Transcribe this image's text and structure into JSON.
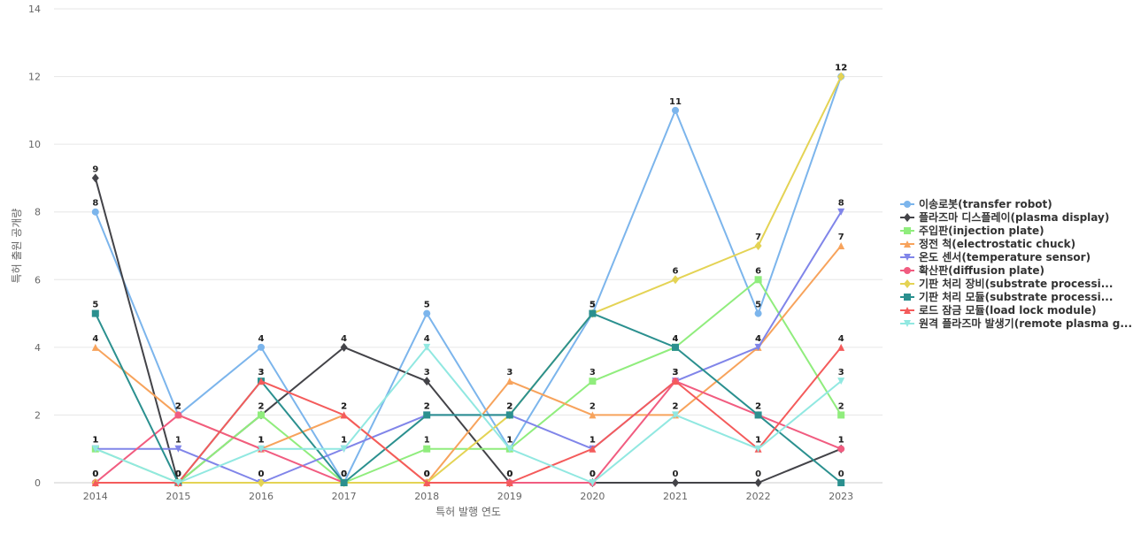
{
  "chart_data": {
    "type": "line",
    "xlabel": "특허 발행 연도",
    "ylabel": "특허 출원 공개량",
    "ylim": [
      0,
      14
    ],
    "y_ticks": [
      0,
      2,
      4,
      6,
      8,
      10,
      12,
      14
    ],
    "grid": true,
    "legend_position": "right",
    "categories": [
      "2014",
      "2015",
      "2016",
      "2017",
      "2018",
      "2019",
      "2020",
      "2021",
      "2022",
      "2023"
    ],
    "series": [
      {
        "name": "이송로봇(transfer robot)",
        "color": "#7cb5ec",
        "marker": "circle",
        "values": [
          8,
          2,
          4,
          0,
          5,
          1,
          5,
          11,
          5,
          12
        ]
      },
      {
        "name": "플라즈마 디스플레이(plasma display)",
        "color": "#434348",
        "marker": "diamond",
        "values": [
          9,
          0,
          2,
          4,
          3,
          0,
          0,
          0,
          0,
          1
        ]
      },
      {
        "name": "주입판(injection plate)",
        "color": "#90ed7d",
        "marker": "square",
        "values": [
          1,
          0,
          2,
          0,
          1,
          1,
          3,
          4,
          6,
          2
        ]
      },
      {
        "name": "정전 척(electrostatic chuck)",
        "color": "#f7a35c",
        "marker": "triangle",
        "values": [
          4,
          2,
          1,
          2,
          0,
          3,
          2,
          2,
          4,
          7
        ]
      },
      {
        "name": "온도 센서(temperature sensor)",
        "color": "#8085e9",
        "marker": "triangle-down",
        "values": [
          1,
          1,
          0,
          1,
          2,
          2,
          1,
          3,
          4,
          8
        ]
      },
      {
        "name": "확산판(diffusion plate)",
        "color": "#f15c80",
        "marker": "circle",
        "values": [
          0,
          2,
          1,
          0,
          0,
          0,
          0,
          3,
          2,
          1
        ]
      },
      {
        "name": "기판 처리 장비(substrate processi...",
        "color": "#e4d354",
        "marker": "diamond",
        "values": [
          0,
          0,
          0,
          0,
          0,
          2,
          5,
          6,
          7,
          12
        ]
      },
      {
        "name": "기판 처리 모듈(substrate processi...",
        "color": "#2b908f",
        "marker": "square",
        "values": [
          5,
          0,
          3,
          0,
          2,
          2,
          5,
          4,
          2,
          0
        ]
      },
      {
        "name": "로드 잠금 모듈(load lock module)",
        "color": "#f45b5b",
        "marker": "triangle",
        "values": [
          0,
          0,
          3,
          2,
          0,
          0,
          1,
          3,
          1,
          4
        ]
      },
      {
        "name": "원격 플라즈마 발생기(remote plasma g...",
        "color": "#91e8e1",
        "marker": "triangle-down",
        "values": [
          1,
          0,
          1,
          1,
          4,
          1,
          0,
          2,
          1,
          3
        ]
      }
    ]
  }
}
